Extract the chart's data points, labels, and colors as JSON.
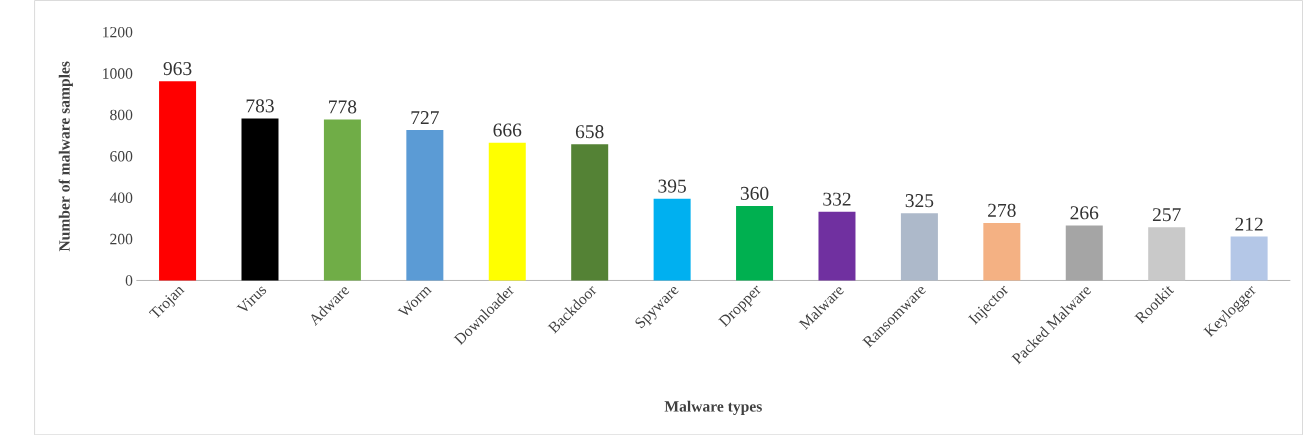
{
  "chart_data": {
    "type": "bar",
    "xlabel": "Malware types",
    "ylabel": "Number of malware samples",
    "categories": [
      "Trojan",
      "Virus",
      "Adware",
      "Worm",
      "Downloader",
      "Backdoor",
      "Spyware",
      "Dropper",
      "Malware",
      "Ransomware",
      "Injector",
      "Packed Malware",
      "Rootkit",
      "Keylogger"
    ],
    "values": [
      963,
      783,
      778,
      727,
      666,
      658,
      395,
      360,
      332,
      325,
      278,
      266,
      257,
      212
    ],
    "colors": [
      "#ff0000",
      "#000000",
      "#70ad47",
      "#5b9bd5",
      "#ffff00",
      "#548235",
      "#00b0f0",
      "#00b050",
      "#7030a0",
      "#adb9ca",
      "#f4b183",
      "#a5a5a5",
      "#c9c9c9",
      "#b4c7e7"
    ],
    "ylim": [
      0,
      1200
    ],
    "yticks": [
      0,
      200,
      400,
      600,
      800,
      1000,
      1200
    ],
    "data_labels": true,
    "grid": false
  }
}
